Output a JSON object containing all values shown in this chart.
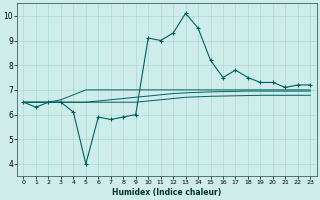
{
  "xlabel": "Humidex (Indice chaleur)",
  "background_color": "#ceecea",
  "grid_color": "#add8d5",
  "line_color": "#006060",
  "xlim": [
    -0.5,
    23.5
  ],
  "ylim": [
    3.5,
    10.5
  ],
  "xticks": [
    0,
    1,
    2,
    3,
    4,
    5,
    6,
    7,
    8,
    9,
    10,
    11,
    12,
    13,
    14,
    15,
    16,
    17,
    18,
    19,
    20,
    21,
    22,
    23
  ],
  "yticks": [
    4,
    5,
    6,
    7,
    8,
    9,
    10
  ],
  "main_line": [
    6.5,
    6.3,
    6.5,
    6.5,
    6.1,
    4.0,
    5.9,
    5.8,
    5.9,
    6.0,
    9.1,
    9.0,
    9.3,
    10.1,
    9.5,
    8.2,
    7.5,
    7.8,
    7.5,
    7.3,
    7.3,
    7.1,
    7.2,
    7.2
  ],
  "line2": [
    6.5,
    6.5,
    6.5,
    6.5,
    6.5,
    6.5,
    6.55,
    6.6,
    6.65,
    6.7,
    6.75,
    6.8,
    6.85,
    6.88,
    6.9,
    6.92,
    6.93,
    6.94,
    6.95,
    6.95,
    6.95,
    6.95,
    6.95,
    6.95
  ],
  "line3": [
    6.5,
    6.5,
    6.5,
    6.6,
    6.8,
    7.0,
    7.0,
    7.0,
    7.0,
    7.0,
    7.0,
    7.0,
    7.0,
    7.0,
    7.0,
    7.0,
    7.0,
    7.0,
    7.0,
    7.0,
    7.0,
    7.0,
    7.0,
    7.0
  ],
  "line4": [
    6.5,
    6.5,
    6.5,
    6.5,
    6.5,
    6.5,
    6.5,
    6.5,
    6.5,
    6.5,
    6.55,
    6.6,
    6.65,
    6.7,
    6.72,
    6.74,
    6.75,
    6.76,
    6.77,
    6.78,
    6.78,
    6.78,
    6.78,
    6.78
  ]
}
